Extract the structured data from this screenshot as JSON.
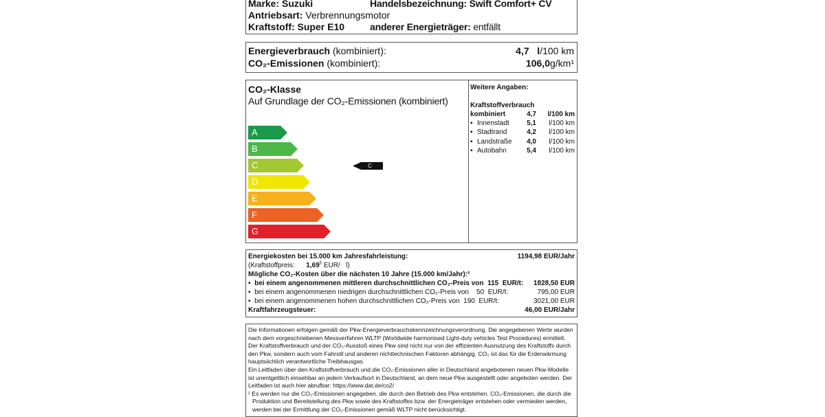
{
  "vehicle": {
    "marke_label": "Marke:",
    "marke": "Suzuki",
    "handel_label": "Handelsbezeichnung:",
    "handel": "Swift Comfort+ CV",
    "antrieb_label": "Antriebsart:",
    "antrieb": "Verbrennungsmotor",
    "kraftstoff_label": "Kraftstoff:",
    "kraftstoff": "Super E10",
    "anderer_label": "anderer Energieträger:",
    "anderer": "entfällt"
  },
  "consumption": {
    "energy_label": "Energieverbrauch",
    "energy_suffix": "(kombiniert):",
    "energy_value": "4,7",
    "energy_unit_bold": "l",
    "energy_unit": "/100 km",
    "co2_label": "CO₂-Emissionen",
    "co2_suffix": "(kombiniert):",
    "co2_value": "106,0",
    "co2_unit": "g/km¹"
  },
  "co2_class": {
    "title": "CO₂-Klasse",
    "subtitle": "Auf Grundlage der CO₂-Emissionen (kombiniert)",
    "classes": [
      {
        "letter": "A",
        "color": "#1a9a4a"
      },
      {
        "letter": "B",
        "color": "#4cb747"
      },
      {
        "letter": "C",
        "color": "#a3c832"
      },
      {
        "letter": "D",
        "color": "#f1e600"
      },
      {
        "letter": "E",
        "color": "#f7b11a"
      },
      {
        "letter": "F",
        "color": "#ec6323"
      },
      {
        "letter": "G",
        "color": "#e2202a"
      }
    ],
    "current": "C"
  },
  "further": {
    "title": "Weitere Angaben:",
    "heading": "Kraftstoffverbrauch",
    "combined_label": "kombiniert",
    "combined_value": "4,7",
    "combined_unit": "l/100 km",
    "items": [
      {
        "label": "Innenstadt",
        "value": "5,1",
        "unit": "l/100 km"
      },
      {
        "label": "Stadtrand",
        "value": "4,2",
        "unit": "l/100 km"
      },
      {
        "label": "Landstraße",
        "value": "4,0",
        "unit": "l/100 km"
      },
      {
        "label": "Autobahn",
        "value": "5,4",
        "unit": "l/100 km"
      }
    ]
  },
  "costs": {
    "energy_label": "Energiekosten bei 15.000 km Jahresfahrleistung:",
    "energy_value": "1194,98 EUR/Jahr",
    "fuel_price_label": "(Kraftstoffpreis:",
    "fuel_price": "1,69",
    "fuel_price_sup": "5",
    "fuel_price_unit": "EUR/   l)",
    "co2_heading": "Mögliche CO₂-Kosten über die nächsten 10 Jahre (15.000 km/Jahr):²",
    "items": [
      {
        "text": "bei einem angenommenen mittleren durchschnittlichen CO₂-Preis von  115  EUR/t:",
        "value": "1828,50 EUR"
      },
      {
        "text": "bei einem angenommenen niedrigen durchschnittlichen CO₂-Preis von    50  EUR/t:",
        "value": "795,00 EUR"
      },
      {
        "text": "bei einem angenommenen hohen durchschnittlichen CO₂-Preis von  190  EUR/t:",
        "value": "3021,00 EUR"
      }
    ],
    "tax_label": "Kraftfahrzeugsteuer:",
    "tax_value": "46,00 EUR/Jahr"
  },
  "footnote": {
    "p1": "Die Informationen erfolgen gemäß der Pkw-Energieverbrauchskennzeichnungsverordnung. Die angegebenen Werte wurden nach dem vorgeschriebenen Messverfahren WLTP (Worldwide harmonised Light-duty vehicles Test Procedures) ermittelt. Der Kraftstoffverbrauch und der CO₂-Ausstoß eines Pkw sind nicht nur von der effizienten Ausnutzung des Kraftstoffs durch den Pkw, sondern auch vom Fahrstil und anderen nichttechnischen Faktoren abhängig. CO₂ ist das für die Erderwärmung hauptsächlich verantwortliche Treibhausgas.",
    "p2": "Ein Leitfaden über den Kraftstoffverbrauch und die CO₂-Emissionen aller in Deutschland angebotenen neuen Pkw-Modelle ist unentgeltlich einsehbar an jedem Verkaufsort in Deutschland, an dem neue Pkw ausgestellt oder angeboten werden. Der Leitfaden ist auch hier abrufbar:   https://www.dat.de/co2/",
    "p3": "¹ Es werden nur die CO₂-Emissionen angegeben, die durch den Betrieb des Pkw entstehen. CO₂-Emissionen, die durch die Produktion und Bereitstellung des Pkw sowie des Kraftstoffes bzw. der Energieträger entstehen oder vermieden werden, werden bei der Ermittlung der CO₂-Emissionen gemäß WLTP nicht berücksichtigt."
  }
}
